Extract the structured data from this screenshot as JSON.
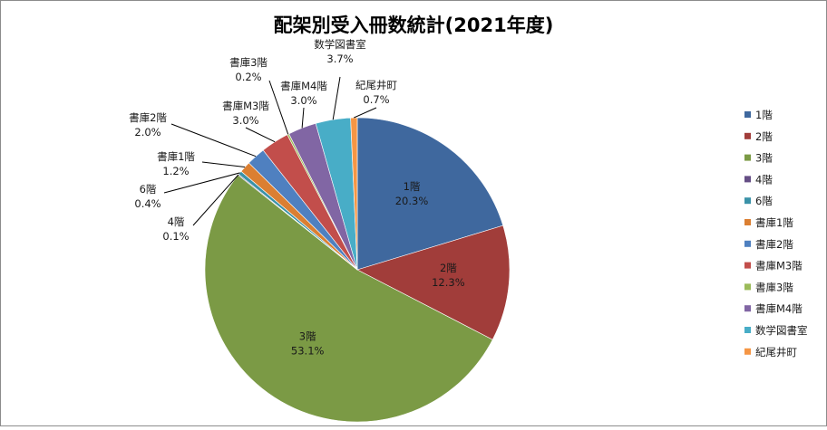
{
  "chart_data": {
    "type": "pie",
    "title": "配架別受入冊数統計(2021年度)",
    "legend_position": "right",
    "slices": [
      {
        "label": "1階",
        "value": 20.3,
        "value_label": "20.3%",
        "color": "#3F689E"
      },
      {
        "label": "2階",
        "value": 12.3,
        "value_label": "12.3%",
        "color": "#A13D3A"
      },
      {
        "label": "3階",
        "value": 53.1,
        "value_label": "53.1%",
        "color": "#7B9A45"
      },
      {
        "label": "4階",
        "value": 0.1,
        "value_label": "0.1%",
        "color": "#654E85"
      },
      {
        "label": "6階",
        "value": 0.4,
        "value_label": "0.4%",
        "color": "#3A92A8"
      },
      {
        "label": "書庫1階",
        "value": 1.2,
        "value_label": "1.2%",
        "color": "#DB7F32"
      },
      {
        "label": "書庫2階",
        "value": 2.0,
        "value_label": "2.0%",
        "color": "#4F80C0"
      },
      {
        "label": "書庫M3階",
        "value": 3.0,
        "value_label": "3.0%",
        "color": "#C24E4B"
      },
      {
        "label": "書庫3階",
        "value": 0.2,
        "value_label": "0.2%",
        "color": "#9BBB59"
      },
      {
        "label": "書庫M4階",
        "value": 3.0,
        "value_label": "3.0%",
        "color": "#8166A4"
      },
      {
        "label": "数学図書室",
        "value": 3.7,
        "value_label": "3.7%",
        "color": "#48ADC7"
      },
      {
        "label": "紀尾井町",
        "value": 0.7,
        "value_label": "0.7%",
        "color": "#F59645"
      }
    ]
  }
}
